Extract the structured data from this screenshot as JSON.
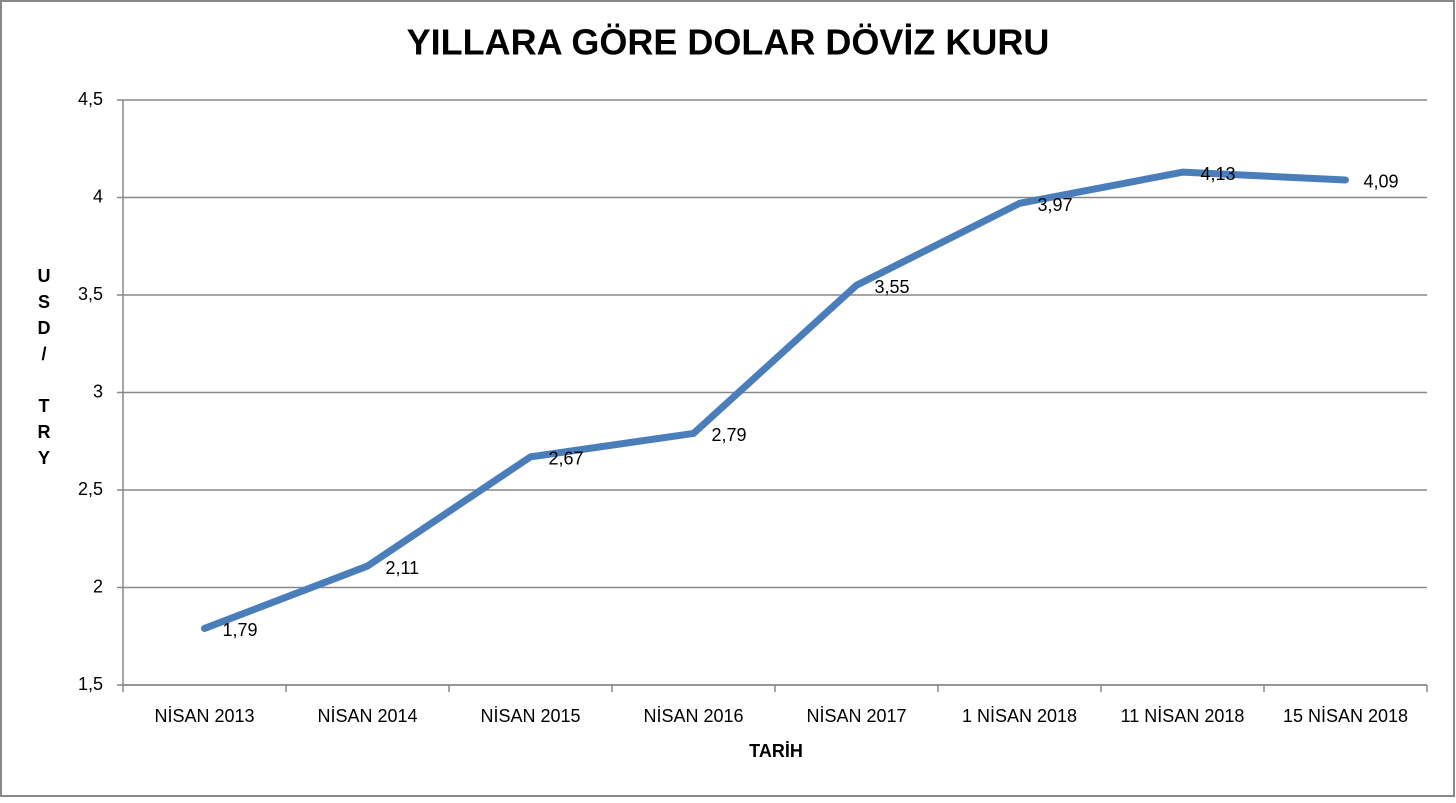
{
  "chart_data": {
    "type": "line",
    "title": "YILLARA GÖRE DOLAR DÖVİZ KURU",
    "x_label": "TARİH",
    "y_label": "USD/ TRY",
    "categories": [
      "NİSAN 2013",
      "NİSAN 2014",
      "NİSAN 2015",
      "NİSAN 2016",
      "NİSAN 2017",
      "1 NİSAN 2018",
      "11 NİSAN 2018",
      "15 NİSAN 2018"
    ],
    "values": [
      1.79,
      2.11,
      2.67,
      2.79,
      3.55,
      3.97,
      4.13,
      4.09
    ],
    "value_labels": [
      "1,79",
      "2,11",
      "2,67",
      "2,79",
      "3,55",
      "3,97",
      "4,13",
      "4,09"
    ],
    "color": "#4a7ebb",
    "ylim": [
      1.5,
      4.5
    ],
    "yticks": [
      {
        "value": 1.5,
        "label": "1,5"
      },
      2,
      {
        "value": 2.5,
        "label": "2,5"
      },
      3,
      {
        "value": 3.5,
        "label": "3,5"
      },
      4,
      {
        "value": 4.5,
        "label": "4,5"
      }
    ],
    "grid": true
  }
}
